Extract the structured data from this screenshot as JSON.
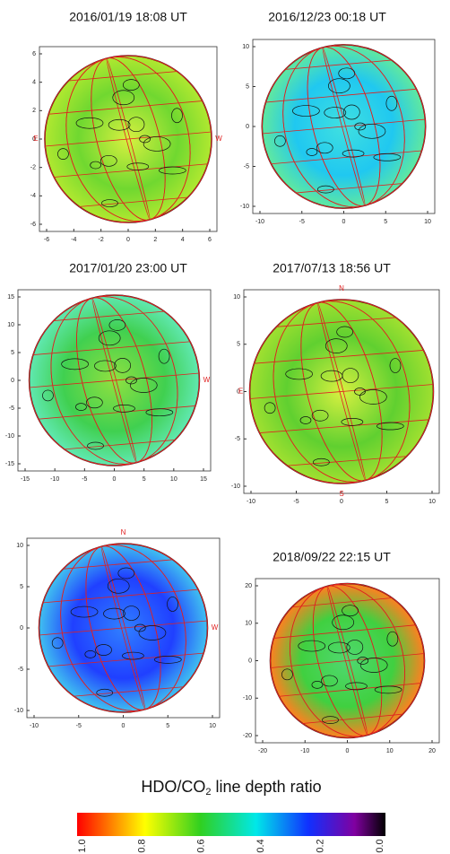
{
  "panels": [
    {
      "title": "2016/01/19  18:08 UT",
      "xticks": [
        "-6",
        "-4",
        "-2",
        "0",
        "2",
        "4",
        "6"
      ],
      "yticks": [
        "6",
        "4",
        "2",
        "0",
        "-2",
        "-4",
        "-6"
      ],
      "dirs": {
        "E": "E",
        "W": "W"
      }
    },
    {
      "title": "2016/12/23  00:18 UT",
      "xticks": [
        "-10",
        "-5",
        "0",
        "5",
        "10"
      ],
      "yticks": [
        "10",
        "5",
        "0",
        "-5",
        "-10"
      ],
      "dirs": {}
    },
    {
      "title": "2017/01/20  23:00 UT",
      "xticks": [
        "-15",
        "-10",
        "-5",
        "0",
        "5",
        "10",
        "15"
      ],
      "yticks": [
        "15",
        "10",
        "5",
        "0",
        "-5",
        "-10",
        "-15"
      ],
      "dirs": {
        "W": "W"
      }
    },
    {
      "title": "2017/07/13  18:56 UT",
      "xticks": [
        "-10",
        "-5",
        "0",
        "5",
        "10"
      ],
      "yticks": [
        "10",
        "5",
        "0",
        "-5",
        "-10"
      ],
      "dirs": {
        "N": "N",
        "E": "E",
        "S": "S"
      }
    },
    {
      "xticks": [
        "-10",
        "-5",
        "0",
        "5",
        "10"
      ],
      "yticks": [
        "10",
        "5",
        "0",
        "-5",
        "-10"
      ],
      "dirs": {
        "N": "N",
        "W": "W"
      }
    },
    {
      "title": "2018/09/22  22:15 UT",
      "xticks": [
        "-20",
        "-10",
        "0",
        "10",
        "20"
      ],
      "yticks": [
        "20",
        "10",
        "0",
        "-10",
        "-20"
      ],
      "dirs": {}
    }
  ],
  "colorbar": {
    "title": "HDO/CO",
    "subscript": "2",
    "title_rest": " line depth ratio",
    "ticks": [
      "1.0",
      "0.8",
      "0.6",
      "0.4",
      "0.2",
      "0.0"
    ]
  }
}
